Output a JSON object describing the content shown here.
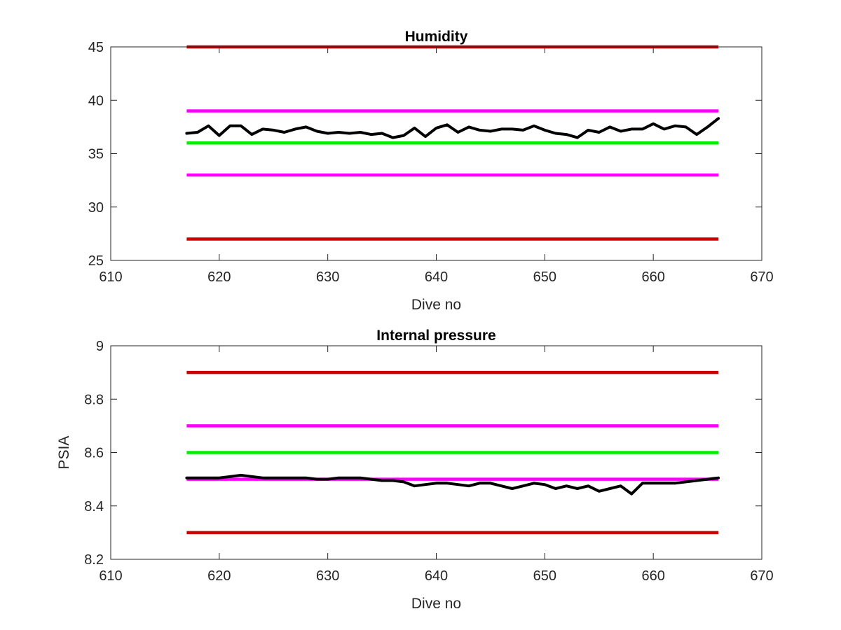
{
  "colors": {
    "red": "#cc0000",
    "magenta": "#ff00ff",
    "green": "#00ee00",
    "black": "#000000",
    "axis": "#262626"
  },
  "chart_data": [
    {
      "type": "line",
      "title": "Humidity",
      "xlabel": "Dive no",
      "ylabel": "",
      "xlim": [
        610,
        670
      ],
      "ylim": [
        25,
        45
      ],
      "xticks": [
        610,
        620,
        630,
        640,
        650,
        660,
        670
      ],
      "yticks": [
        25,
        30,
        35,
        40,
        45
      ],
      "xtick_labels": [
        "610",
        "620",
        "630",
        "640",
        "650",
        "660",
        "670"
      ],
      "ytick_labels": [
        "25",
        "30",
        "35",
        "40",
        "45"
      ],
      "grid": false,
      "reference_lines": [
        {
          "y": 45,
          "x": [
            617,
            666
          ],
          "color": "#cc0000"
        },
        {
          "y": 39,
          "x": [
            617,
            666
          ],
          "color": "#ff00ff"
        },
        {
          "y": 36,
          "x": [
            617,
            666
          ],
          "color": "#00ee00"
        },
        {
          "y": 33,
          "x": [
            617,
            666
          ],
          "color": "#ff00ff"
        },
        {
          "y": 27,
          "x": [
            617,
            666
          ],
          "color": "#cc0000"
        }
      ],
      "series": [
        {
          "color": "#000000",
          "x": [
            617,
            618,
            619,
            620,
            621,
            622,
            623,
            624,
            625,
            626,
            627,
            628,
            629,
            630,
            631,
            632,
            633,
            634,
            635,
            636,
            637,
            638,
            639,
            640,
            641,
            642,
            643,
            644,
            645,
            646,
            647,
            648,
            649,
            650,
            651,
            652,
            653,
            654,
            655,
            656,
            657,
            658,
            659,
            660,
            661,
            662,
            663,
            664,
            665,
            666
          ],
          "values": [
            36.9,
            37.0,
            37.6,
            36.7,
            37.6,
            37.6,
            36.8,
            37.3,
            37.2,
            37.0,
            37.3,
            37.5,
            37.1,
            36.9,
            37.0,
            36.9,
            37.0,
            36.8,
            36.9,
            36.5,
            36.7,
            37.4,
            36.6,
            37.4,
            37.7,
            37.0,
            37.5,
            37.2,
            37.1,
            37.3,
            37.3,
            37.2,
            37.6,
            37.2,
            36.9,
            36.8,
            36.5,
            37.2,
            37.0,
            37.5,
            37.1,
            37.3,
            37.3,
            37.8,
            37.3,
            37.6,
            37.5,
            36.8,
            37.5,
            38.3
          ]
        }
      ]
    },
    {
      "type": "line",
      "title": "Internal pressure",
      "xlabel": "Dive no",
      "ylabel": "PSIA",
      "xlim": [
        610,
        670
      ],
      "ylim": [
        8.2,
        9.0
      ],
      "xticks": [
        610,
        620,
        630,
        640,
        650,
        660,
        670
      ],
      "yticks": [
        8.2,
        8.4,
        8.6,
        8.8,
        9.0
      ],
      "xtick_labels": [
        "610",
        "620",
        "630",
        "640",
        "650",
        "660",
        "670"
      ],
      "ytick_labels": [
        "8.2",
        "8.4",
        "8.6",
        "8.8",
        "9"
      ],
      "grid": false,
      "reference_lines": [
        {
          "y": 8.9,
          "x": [
            617,
            666
          ],
          "color": "#cc0000"
        },
        {
          "y": 8.7,
          "x": [
            617,
            666
          ],
          "color": "#ff00ff"
        },
        {
          "y": 8.6,
          "x": [
            617,
            666
          ],
          "color": "#00ee00"
        },
        {
          "y": 8.5,
          "x": [
            617,
            666
          ],
          "color": "#ff00ff"
        },
        {
          "y": 8.3,
          "x": [
            617,
            666
          ],
          "color": "#cc0000"
        }
      ],
      "series": [
        {
          "color": "#000000",
          "x": [
            617,
            618,
            619,
            620,
            621,
            622,
            623,
            624,
            625,
            626,
            627,
            628,
            629,
            630,
            631,
            632,
            633,
            634,
            635,
            636,
            637,
            638,
            639,
            640,
            641,
            642,
            643,
            644,
            645,
            646,
            647,
            648,
            649,
            650,
            651,
            652,
            653,
            654,
            655,
            656,
            657,
            658,
            659,
            660,
            661,
            662,
            663,
            664,
            665,
            666
          ],
          "values": [
            8.505,
            8.505,
            8.505,
            8.505,
            8.51,
            8.515,
            8.51,
            8.505,
            8.505,
            8.505,
            8.505,
            8.505,
            8.5,
            8.5,
            8.505,
            8.505,
            8.505,
            8.5,
            8.495,
            8.495,
            8.49,
            8.475,
            8.48,
            8.485,
            8.485,
            8.48,
            8.475,
            8.485,
            8.485,
            8.475,
            8.465,
            8.475,
            8.485,
            8.48,
            8.465,
            8.475,
            8.465,
            8.475,
            8.455,
            8.465,
            8.475,
            8.445,
            8.485,
            8.485,
            8.485,
            8.485,
            8.49,
            8.495,
            8.5,
            8.505
          ]
        }
      ]
    }
  ]
}
